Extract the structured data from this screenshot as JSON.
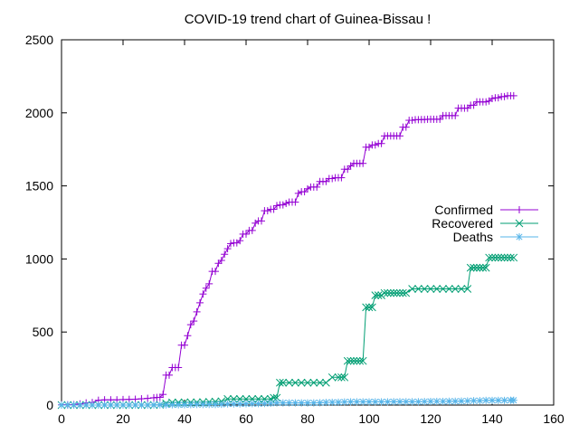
{
  "chart_data": {
    "type": "line",
    "title": "COVID-19 trend chart of Guinea-Bissau !",
    "xlabel": "",
    "ylabel": "",
    "xlim": [
      0,
      160
    ],
    "ylim": [
      0,
      2500
    ],
    "xticks": [
      "0",
      "20",
      "40",
      "60",
      "80",
      "100",
      "120",
      "140",
      "160"
    ],
    "yticks": [
      "0",
      "500",
      "1000",
      "1500",
      "2000",
      "2500"
    ],
    "grid": false,
    "legend_position": "right",
    "series": [
      {
        "name": "Confirmed",
        "color": "#9400d3",
        "marker": "plus",
        "points": [
          [
            0,
            2
          ],
          [
            2,
            2
          ],
          [
            4,
            3
          ],
          [
            6,
            8
          ],
          [
            8,
            15
          ],
          [
            10,
            18
          ],
          [
            12,
            33
          ],
          [
            14,
            36
          ],
          [
            16,
            36
          ],
          [
            18,
            36
          ],
          [
            20,
            38
          ],
          [
            22,
            39
          ],
          [
            24,
            40
          ],
          [
            26,
            43
          ],
          [
            28,
            46
          ],
          [
            30,
            50
          ],
          [
            31,
            52
          ],
          [
            32,
            53
          ],
          [
            33,
            73
          ],
          [
            34,
            205
          ],
          [
            35,
            205
          ],
          [
            36,
            257
          ],
          [
            37,
            257
          ],
          [
            38,
            257
          ],
          [
            39,
            410
          ],
          [
            40,
            410
          ],
          [
            41,
            475
          ],
          [
            42,
            550
          ],
          [
            43,
            575
          ],
          [
            44,
            638
          ],
          [
            45,
            700
          ],
          [
            46,
            760
          ],
          [
            47,
            800
          ],
          [
            48,
            830
          ],
          [
            49,
            915
          ],
          [
            50,
            915
          ],
          [
            51,
            970
          ],
          [
            52,
            990
          ],
          [
            53,
            1032
          ],
          [
            54,
            1070
          ],
          [
            55,
            1105
          ],
          [
            56,
            1110
          ],
          [
            57,
            1110
          ],
          [
            58,
            1125
          ],
          [
            59,
            1170
          ],
          [
            60,
            1170
          ],
          [
            61,
            1195
          ],
          [
            62,
            1195
          ],
          [
            63,
            1245
          ],
          [
            64,
            1260
          ],
          [
            65,
            1260
          ],
          [
            66,
            1330
          ],
          [
            67,
            1330
          ],
          [
            68,
            1340
          ],
          [
            69,
            1340
          ],
          [
            70,
            1365
          ],
          [
            71,
            1370
          ],
          [
            72,
            1370
          ],
          [
            73,
            1380
          ],
          [
            74,
            1389
          ],
          [
            75,
            1389
          ],
          [
            76,
            1389
          ],
          [
            77,
            1449
          ],
          [
            78,
            1460
          ],
          [
            79,
            1460
          ],
          [
            80,
            1480
          ],
          [
            81,
            1492
          ],
          [
            82,
            1492
          ],
          [
            83,
            1492
          ],
          [
            84,
            1530
          ],
          [
            85,
            1530
          ],
          [
            86,
            1530
          ],
          [
            87,
            1550
          ],
          [
            88,
            1550
          ],
          [
            89,
            1556
          ],
          [
            90,
            1556
          ],
          [
            91,
            1556
          ],
          [
            92,
            1614
          ],
          [
            93,
            1614
          ],
          [
            94,
            1637
          ],
          [
            95,
            1654
          ],
          [
            96,
            1654
          ],
          [
            97,
            1654
          ],
          [
            98,
            1654
          ],
          [
            99,
            1765
          ],
          [
            100,
            1765
          ],
          [
            101,
            1780
          ],
          [
            102,
            1780
          ],
          [
            103,
            1790
          ],
          [
            104,
            1790
          ],
          [
            105,
            1842
          ],
          [
            106,
            1842
          ],
          [
            107,
            1842
          ],
          [
            108,
            1842
          ],
          [
            109,
            1842
          ],
          [
            110,
            1842
          ],
          [
            111,
            1902
          ],
          [
            112,
            1902
          ],
          [
            113,
            1949
          ],
          [
            114,
            1949
          ],
          [
            115,
            1953
          ],
          [
            116,
            1953
          ],
          [
            117,
            1954
          ],
          [
            118,
            1954
          ],
          [
            119,
            1956
          ],
          [
            120,
            1956
          ],
          [
            121,
            1956
          ],
          [
            122,
            1956
          ],
          [
            123,
            1956
          ],
          [
            124,
            1981
          ],
          [
            125,
            1981
          ],
          [
            126,
            1981
          ],
          [
            127,
            1981
          ],
          [
            128,
            1981
          ],
          [
            129,
            2032
          ],
          [
            130,
            2032
          ],
          [
            131,
            2032
          ],
          [
            132,
            2032
          ],
          [
            133,
            2052
          ],
          [
            134,
            2052
          ],
          [
            135,
            2075
          ],
          [
            136,
            2075
          ],
          [
            137,
            2075
          ],
          [
            138,
            2075
          ],
          [
            139,
            2081
          ],
          [
            140,
            2098
          ],
          [
            141,
            2103
          ],
          [
            142,
            2103
          ],
          [
            143,
            2111
          ],
          [
            144,
            2111
          ],
          [
            145,
            2117
          ],
          [
            146,
            2117
          ],
          [
            147,
            2117
          ]
        ]
      },
      {
        "name": "Recovered",
        "color": "#009e73",
        "marker": "cross",
        "points": [
          [
            0,
            0
          ],
          [
            2,
            0
          ],
          [
            4,
            0
          ],
          [
            6,
            0
          ],
          [
            8,
            0
          ],
          [
            10,
            0
          ],
          [
            12,
            0
          ],
          [
            14,
            0
          ],
          [
            16,
            0
          ],
          [
            18,
            0
          ],
          [
            20,
            0
          ],
          [
            22,
            0
          ],
          [
            24,
            0
          ],
          [
            26,
            0
          ],
          [
            28,
            0
          ],
          [
            30,
            0
          ],
          [
            32,
            2
          ],
          [
            34,
            12
          ],
          [
            36,
            18
          ],
          [
            38,
            18
          ],
          [
            40,
            19
          ],
          [
            42,
            19
          ],
          [
            44,
            19
          ],
          [
            46,
            20
          ],
          [
            48,
            22
          ],
          [
            50,
            24
          ],
          [
            52,
            26
          ],
          [
            54,
            42
          ],
          [
            56,
            42
          ],
          [
            58,
            42
          ],
          [
            60,
            42
          ],
          [
            62,
            42
          ],
          [
            64,
            42
          ],
          [
            66,
            42
          ],
          [
            68,
            42
          ],
          [
            69,
            50
          ],
          [
            70,
            50
          ],
          [
            71,
            153
          ],
          [
            72,
            153
          ],
          [
            74,
            153
          ],
          [
            76,
            153
          ],
          [
            78,
            153
          ],
          [
            80,
            153
          ],
          [
            82,
            153
          ],
          [
            84,
            153
          ],
          [
            86,
            153
          ],
          [
            88,
            190
          ],
          [
            90,
            190
          ],
          [
            91,
            190
          ],
          [
            92,
            190
          ],
          [
            93,
            302
          ],
          [
            94,
            302
          ],
          [
            95,
            302
          ],
          [
            96,
            302
          ],
          [
            97,
            302
          ],
          [
            98,
            302
          ],
          [
            99,
            669
          ],
          [
            100,
            669
          ],
          [
            101,
            669
          ],
          [
            102,
            751
          ],
          [
            103,
            751
          ],
          [
            104,
            751
          ],
          [
            105,
            767
          ],
          [
            106,
            767
          ],
          [
            107,
            767
          ],
          [
            108,
            767
          ],
          [
            109,
            767
          ],
          [
            110,
            767
          ],
          [
            111,
            767
          ],
          [
            112,
            767
          ],
          [
            114,
            795
          ],
          [
            116,
            795
          ],
          [
            118,
            795
          ],
          [
            120,
            795
          ],
          [
            122,
            795
          ],
          [
            124,
            795
          ],
          [
            126,
            795
          ],
          [
            128,
            795
          ],
          [
            130,
            795
          ],
          [
            132,
            795
          ],
          [
            133,
            940
          ],
          [
            134,
            940
          ],
          [
            135,
            940
          ],
          [
            136,
            940
          ],
          [
            137,
            940
          ],
          [
            138,
            940
          ],
          [
            139,
            1009
          ],
          [
            140,
            1009
          ],
          [
            141,
            1009
          ],
          [
            142,
            1009
          ],
          [
            143,
            1009
          ],
          [
            144,
            1009
          ],
          [
            145,
            1009
          ],
          [
            146,
            1009
          ],
          [
            147,
            1009
          ]
        ]
      },
      {
        "name": "Deaths",
        "color": "#56b4e9",
        "marker": "star",
        "points": [
          [
            0,
            0
          ],
          [
            2,
            0
          ],
          [
            4,
            0
          ],
          [
            6,
            0
          ],
          [
            8,
            0
          ],
          [
            10,
            0
          ],
          [
            12,
            0
          ],
          [
            14,
            0
          ],
          [
            16,
            0
          ],
          [
            18,
            0
          ],
          [
            20,
            0
          ],
          [
            22,
            0
          ],
          [
            24,
            0
          ],
          [
            26,
            0
          ],
          [
            28,
            0
          ],
          [
            30,
            1
          ],
          [
            32,
            1
          ],
          [
            34,
            1
          ],
          [
            36,
            2
          ],
          [
            38,
            2
          ],
          [
            40,
            2
          ],
          [
            42,
            3
          ],
          [
            44,
            4
          ],
          [
            46,
            4
          ],
          [
            48,
            4
          ],
          [
            50,
            4
          ],
          [
            52,
            5
          ],
          [
            54,
            8
          ],
          [
            56,
            8
          ],
          [
            58,
            8
          ],
          [
            60,
            9
          ],
          [
            62,
            10
          ],
          [
            64,
            10
          ],
          [
            66,
            11
          ],
          [
            68,
            12
          ],
          [
            70,
            15
          ],
          [
            72,
            15
          ],
          [
            74,
            15
          ],
          [
            76,
            15
          ],
          [
            78,
            15
          ],
          [
            80,
            15
          ],
          [
            82,
            15
          ],
          [
            84,
            16
          ],
          [
            86,
            18
          ],
          [
            88,
            19
          ],
          [
            90,
            19
          ],
          [
            92,
            21
          ],
          [
            94,
            22
          ],
          [
            96,
            22
          ],
          [
            98,
            22
          ],
          [
            100,
            22
          ],
          [
            102,
            22
          ],
          [
            104,
            22
          ],
          [
            106,
            22
          ],
          [
            108,
            23
          ],
          [
            110,
            23
          ],
          [
            112,
            23
          ],
          [
            114,
            23
          ],
          [
            116,
            23
          ],
          [
            118,
            24
          ],
          [
            120,
            25
          ],
          [
            122,
            25
          ],
          [
            124,
            25
          ],
          [
            126,
            26
          ],
          [
            128,
            26
          ],
          [
            130,
            27
          ],
          [
            132,
            28
          ],
          [
            134,
            30
          ],
          [
            136,
            30
          ],
          [
            138,
            32
          ],
          [
            140,
            32
          ],
          [
            142,
            32
          ],
          [
            144,
            32
          ],
          [
            146,
            33
          ],
          [
            147,
            33
          ]
        ]
      }
    ]
  }
}
